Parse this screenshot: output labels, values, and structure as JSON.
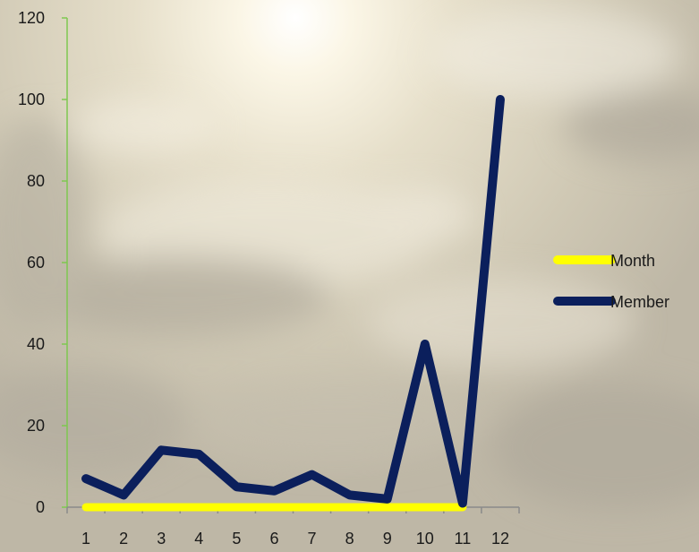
{
  "chart_data": {
    "type": "line",
    "categories": [
      "1",
      "2",
      "3",
      "4",
      "5",
      "6",
      "7",
      "8",
      "9",
      "10",
      "11",
      "12"
    ],
    "series": [
      {
        "name": "Month",
        "color": "#ffff00",
        "values": [
          0,
          0,
          0,
          0,
          0,
          0,
          0,
          0,
          0,
          0,
          0,
          null
        ]
      },
      {
        "name": "Member",
        "color": "#0b1f5c",
        "values": [
          7,
          3,
          14,
          13,
          5,
          4,
          8,
          3,
          2,
          40,
          1,
          100
        ]
      }
    ],
    "ylim": [
      0,
      120
    ],
    "yticks": [
      "0",
      "20",
      "40",
      "60",
      "80",
      "100",
      "120"
    ],
    "y_axis_color": "#7ec850",
    "legend_position": "right",
    "grid": false,
    "background": "cloudy-sky-photo"
  }
}
